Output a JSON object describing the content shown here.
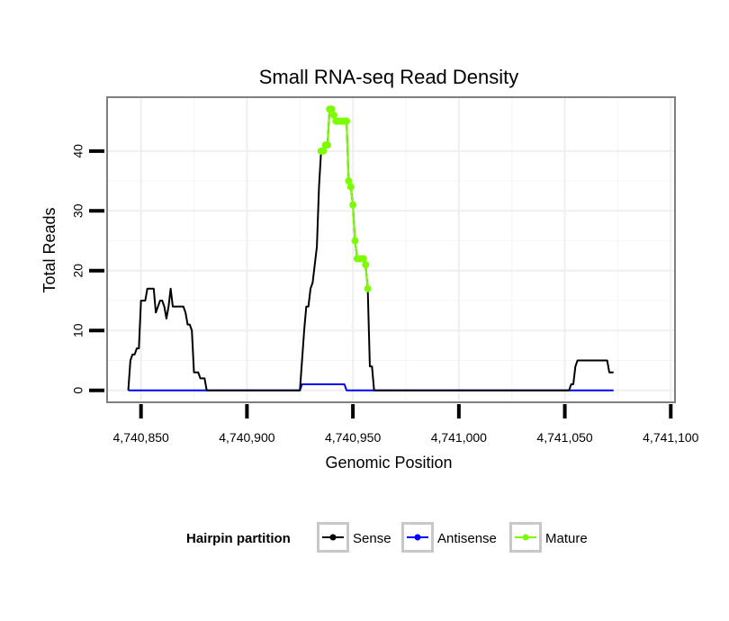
{
  "chart_data": {
    "type": "line",
    "title": "Small RNA-seq Read Density",
    "xlabel": "Genomic Position",
    "ylabel": "Total Reads",
    "xlim": [
      4740834,
      4741102
    ],
    "ylim": [
      -2,
      49
    ],
    "x_ticks": [
      {
        "value": 4740850,
        "label": "4,740,850"
      },
      {
        "value": 4740900,
        "label": "4,740,900"
      },
      {
        "value": 4740950,
        "label": "4,740,950"
      },
      {
        "value": 4741000,
        "label": "4,741,000"
      },
      {
        "value": 4741050,
        "label": "4,741,050"
      },
      {
        "value": 4741100,
        "label": "4,741,100"
      }
    ],
    "y_ticks": [
      {
        "value": 0,
        "label": "0"
      },
      {
        "value": 10,
        "label": "10"
      },
      {
        "value": 20,
        "label": "20"
      },
      {
        "value": 30,
        "label": "30"
      },
      {
        "value": 40,
        "label": "40"
      }
    ],
    "grid": true,
    "legend": {
      "title": "Hairpin partition",
      "position": "bottom",
      "entries": [
        {
          "name": "Sense",
          "color": "#000000"
        },
        {
          "name": "Antisense",
          "color": "#0000ff"
        },
        {
          "name": "Mature",
          "color": "#7cfc00"
        }
      ]
    },
    "series": [
      {
        "name": "Sense",
        "color": "#000000",
        "points": [
          [
            4740844,
            0
          ],
          [
            4740845,
            5
          ],
          [
            4740846,
            6
          ],
          [
            4740847,
            6
          ],
          [
            4740848,
            7
          ],
          [
            4740849,
            7
          ],
          [
            4740850,
            15
          ],
          [
            4740851,
            15
          ],
          [
            4740852,
            15
          ],
          [
            4740853,
            17
          ],
          [
            4740854,
            17
          ],
          [
            4740855,
            17
          ],
          [
            4740856,
            17
          ],
          [
            4740857,
            13
          ],
          [
            4740858,
            14
          ],
          [
            4740859,
            15
          ],
          [
            4740860,
            15
          ],
          [
            4740861,
            14
          ],
          [
            4740862,
            12
          ],
          [
            4740863,
            14
          ],
          [
            4740864,
            17
          ],
          [
            4740865,
            14
          ],
          [
            4740866,
            14
          ],
          [
            4740867,
            14
          ],
          [
            4740868,
            14
          ],
          [
            4740869,
            14
          ],
          [
            4740870,
            14
          ],
          [
            4740871,
            13
          ],
          [
            4740872,
            11
          ],
          [
            4740873,
            11
          ],
          [
            4740874,
            10
          ],
          [
            4740875,
            3
          ],
          [
            4740876,
            3
          ],
          [
            4740877,
            3
          ],
          [
            4740878,
            2
          ],
          [
            4740879,
            2
          ],
          [
            4740880,
            2
          ],
          [
            4740881,
            0
          ],
          [
            4740882,
            0
          ],
          [
            4740890,
            0
          ],
          [
            4740900,
            0
          ],
          [
            4740910,
            0
          ],
          [
            4740920,
            0
          ],
          [
            4740925,
            0
          ],
          [
            4740926,
            5
          ],
          [
            4740927,
            10
          ],
          [
            4740928,
            14
          ],
          [
            4740929,
            14
          ],
          [
            4740930,
            17
          ],
          [
            4740931,
            18
          ],
          [
            4740932,
            21
          ],
          [
            4740933,
            24
          ],
          [
            4740934,
            34
          ],
          [
            4740935,
            40
          ],
          [
            4740936,
            40
          ],
          [
            4740937,
            41
          ],
          [
            4740938,
            41
          ],
          [
            4740939,
            47
          ],
          [
            4740940,
            47
          ],
          [
            4740941,
            46
          ],
          [
            4740942,
            45
          ],
          [
            4740943,
            45
          ],
          [
            4740944,
            45
          ],
          [
            4740945,
            45
          ],
          [
            4740946,
            45
          ],
          [
            4740947,
            45
          ],
          [
            4740948,
            35
          ],
          [
            4740949,
            34
          ],
          [
            4740950,
            31
          ],
          [
            4740951,
            25
          ],
          [
            4740952,
            22
          ],
          [
            4740953,
            22
          ],
          [
            4740954,
            22
          ],
          [
            4740955,
            22
          ],
          [
            4740956,
            21
          ],
          [
            4740957,
            17
          ],
          [
            4740958,
            4
          ],
          [
            4740959,
            4
          ],
          [
            4740960,
            0
          ],
          [
            4740970,
            0
          ],
          [
            4741000,
            0
          ],
          [
            4741030,
            0
          ],
          [
            4741040,
            0
          ],
          [
            4741052,
            0
          ],
          [
            4741053,
            1
          ],
          [
            4741054,
            1
          ],
          [
            4741055,
            4
          ],
          [
            4741056,
            5
          ],
          [
            4741057,
            5
          ],
          [
            4741058,
            5
          ],
          [
            4741065,
            5
          ],
          [
            4741070,
            5
          ],
          [
            4741071,
            3
          ],
          [
            4741073,
            3
          ]
        ]
      },
      {
        "name": "Antisense",
        "color": "#0000ff",
        "points": [
          [
            4740844,
            0
          ],
          [
            4740925,
            0
          ],
          [
            4740926,
            1
          ],
          [
            4740946,
            1
          ],
          [
            4740947,
            0
          ],
          [
            4741073,
            0
          ]
        ]
      },
      {
        "name": "Mature",
        "color": "#7cfc00",
        "points": [
          [
            4740935,
            40
          ],
          [
            4740936,
            40
          ],
          [
            4740937,
            41
          ],
          [
            4740938,
            41
          ],
          [
            4740939,
            47
          ],
          [
            4740940,
            47
          ],
          [
            4740941,
            46
          ],
          [
            4740942,
            45
          ],
          [
            4740943,
            45
          ],
          [
            4740944,
            45
          ],
          [
            4740945,
            45
          ],
          [
            4740946,
            45
          ],
          [
            4740947,
            45
          ],
          [
            4740948,
            35
          ],
          [
            4740949,
            34
          ],
          [
            4740950,
            31
          ],
          [
            4740951,
            25
          ],
          [
            4740952,
            22
          ],
          [
            4740953,
            22
          ],
          [
            4740954,
            22
          ],
          [
            4740955,
            22
          ],
          [
            4740956,
            21
          ],
          [
            4740957,
            17
          ]
        ]
      }
    ]
  }
}
